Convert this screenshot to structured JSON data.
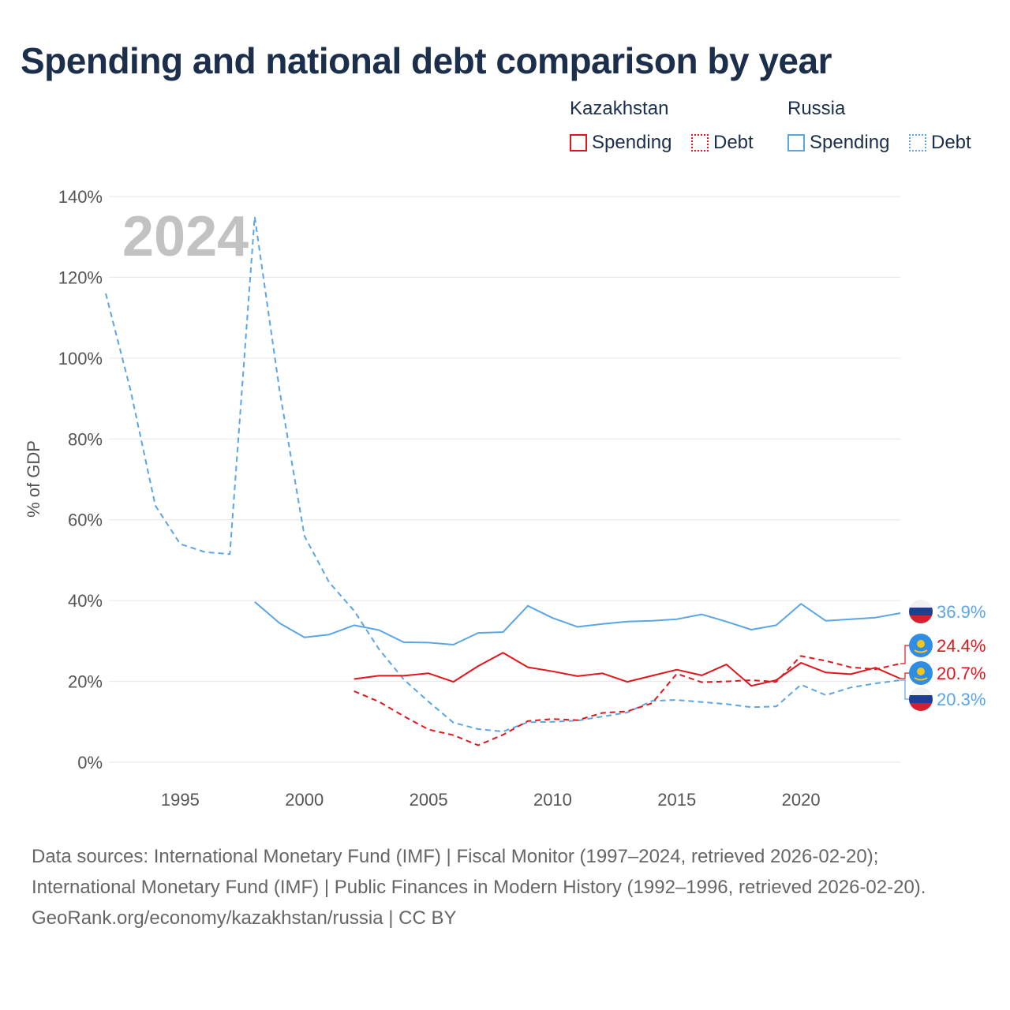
{
  "title": "Spending and national debt comparison by year",
  "legend": {
    "groups": [
      {
        "name": "Kazakhstan",
        "color": "#e3151b",
        "items": [
          {
            "label": "Spending",
            "style": "solid"
          },
          {
            "label": "Debt",
            "style": "dotted"
          }
        ]
      },
      {
        "name": "Russia",
        "color": "#5aa5e6",
        "items": [
          {
            "label": "Spending",
            "style": "solid"
          },
          {
            "label": "Debt",
            "style": "dotted"
          }
        ]
      }
    ]
  },
  "chart_data": {
    "type": "line",
    "ylabel": "% of GDP",
    "xlabel": "",
    "watermark_year": "2024",
    "xlim": [
      1992,
      2024
    ],
    "ylim": [
      0,
      140
    ],
    "xticks": [
      1995,
      2000,
      2005,
      2010,
      2015,
      2020
    ],
    "yticks": [
      0,
      20,
      40,
      60,
      80,
      100,
      120,
      140
    ],
    "ytick_labels": [
      "0%",
      "20%",
      "40%",
      "60%",
      "80%",
      "100%",
      "120%",
      "140%"
    ],
    "series": [
      {
        "name": "Russia Debt",
        "country": "Russia",
        "metric": "Debt",
        "color": "#5aa5e6",
        "dash": "dashed",
        "x": [
          1992,
          1993,
          1994,
          1995,
          1996,
          1997,
          1998,
          1999,
          2000,
          2001,
          2002,
          2003,
          2004,
          2005,
          2006,
          2007,
          2008,
          2009,
          2010,
          2011,
          2012,
          2013,
          2014,
          2015,
          2016,
          2017,
          2018,
          2019,
          2020,
          2021,
          2022,
          2023,
          2024
        ],
        "values": [
          116,
          92,
          63.5,
          54,
          52,
          51.5,
          135,
          92,
          56,
          44.5,
          37.5,
          28,
          20.5,
          15,
          9.8,
          8.2,
          7.6,
          9.9,
          10,
          10.3,
          11.3,
          12.3,
          15.2,
          15.4,
          14.9,
          14.4,
          13.6,
          13.8,
          19.2,
          16.6,
          18.5,
          19.5,
          20.3
        ]
      },
      {
        "name": "Russia Spending",
        "country": "Russia",
        "metric": "Spending",
        "color": "#5aa5e6",
        "dash": "solid",
        "x": [
          1998,
          1999,
          2000,
          2001,
          2002,
          2003,
          2004,
          2005,
          2006,
          2007,
          2008,
          2009,
          2010,
          2011,
          2012,
          2013,
          2014,
          2015,
          2016,
          2017,
          2018,
          2019,
          2020,
          2021,
          2022,
          2023,
          2024
        ],
        "values": [
          39.7,
          34.4,
          30.9,
          31.6,
          33.9,
          32.7,
          29.7,
          29.6,
          29.1,
          32,
          32.2,
          38.7,
          35.7,
          33.5,
          34.2,
          34.8,
          35,
          35.4,
          36.6,
          34.8,
          32.8,
          33.9,
          39.2,
          35,
          35.4,
          35.8,
          36.9
        ]
      },
      {
        "name": "Kazakhstan Debt",
        "country": "Kazakhstan",
        "metric": "Debt",
        "color": "#e3151b",
        "dash": "dashed",
        "x": [
          2002,
          2003,
          2004,
          2005,
          2006,
          2007,
          2008,
          2009,
          2010,
          2011,
          2012,
          2013,
          2014,
          2015,
          2016,
          2017,
          2018,
          2019,
          2020,
          2021,
          2022,
          2023,
          2024
        ],
        "values": [
          17.6,
          15,
          11.4,
          8.1,
          6.7,
          4.2,
          6.8,
          10.2,
          10.7,
          10.4,
          12.2,
          12.6,
          14.6,
          21.9,
          19.8,
          20,
          20.3,
          19.9,
          26.3,
          25.1,
          23.5,
          23,
          24.4
        ]
      },
      {
        "name": "Kazakhstan Spending",
        "country": "Kazakhstan",
        "metric": "Spending",
        "color": "#e3151b",
        "dash": "solid",
        "x": [
          2002,
          2003,
          2004,
          2005,
          2006,
          2007,
          2008,
          2009,
          2010,
          2011,
          2012,
          2013,
          2014,
          2015,
          2016,
          2017,
          2018,
          2019,
          2020,
          2021,
          2022,
          2023,
          2024
        ],
        "values": [
          20.6,
          21.4,
          21.4,
          22,
          19.9,
          23.8,
          27.1,
          23.5,
          22.5,
          21.3,
          22,
          19.9,
          21.4,
          22.9,
          21.5,
          24.2,
          18.9,
          20.3,
          24.6,
          22.2,
          21.8,
          23.4,
          20.7
        ]
      }
    ],
    "end_labels": [
      {
        "text": "36.9%",
        "series": "Russia Spending",
        "color": "#5aa5e6",
        "flag": "russia-flag-icon"
      },
      {
        "text": "24.4%",
        "series": "Kazakhstan Debt",
        "color": "#e3151b",
        "flag": "kazakhstan-flag-icon"
      },
      {
        "text": "20.7%",
        "series": "Kazakhstan Spending",
        "color": "#e3151b",
        "flag": "kazakhstan-flag-icon"
      },
      {
        "text": "20.3%",
        "series": "Russia Debt",
        "color": "#5aa5e6",
        "flag": "russia-flag-icon"
      }
    ]
  },
  "footer": {
    "sources": "Data sources: International Monetary Fund (IMF) | Fiscal Monitor (1997–2024, retrieved 2026-02-20); International Monetary Fund (IMF) | Public Finances in Modern History (1992–1996, retrieved 2026-02-20).",
    "attribution": "GeoRank.org/economy/kazakhstan/russia | CC BY"
  }
}
